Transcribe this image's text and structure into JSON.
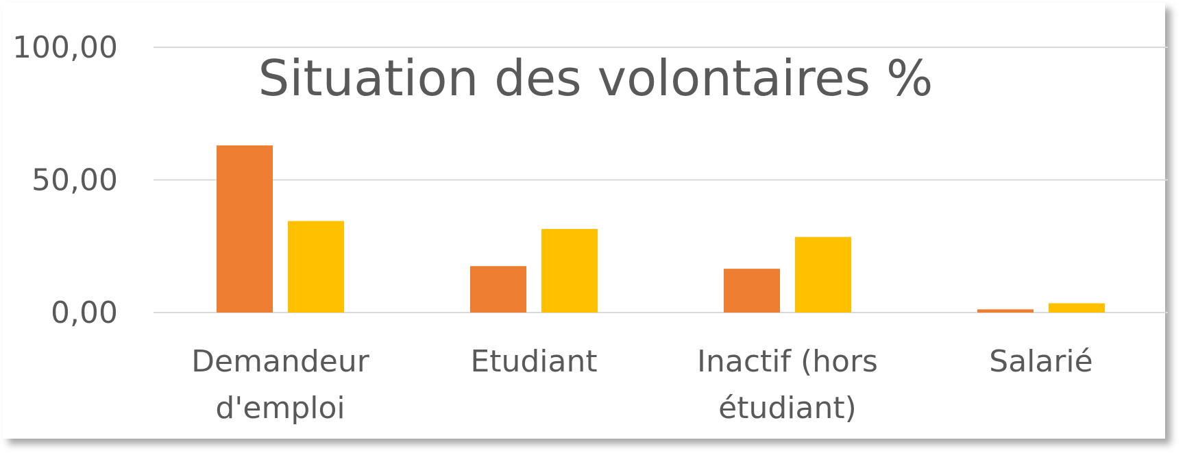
{
  "chart_data": {
    "type": "bar",
    "title": "Situation des volontaires %",
    "categories": [
      [
        "Demandeur",
        "d'emploi"
      ],
      [
        "Etudiant"
      ],
      [
        "Inactif (hors",
        "étudiant)"
      ],
      [
        "Salarié"
      ]
    ],
    "series": [
      {
        "values": [
          63.0,
          17.5,
          16.5,
          1.2
        ],
        "color": "#ED7D31"
      },
      {
        "values": [
          34.5,
          31.5,
          28.5,
          3.5
        ],
        "color": "#FFC000"
      }
    ],
    "ylim": [
      0,
      100
    ],
    "yticks": [
      "0,00",
      "50,00",
      "100,00"
    ],
    "ytick_values": [
      0,
      50,
      100
    ],
    "grid": true,
    "gridColor": "#D9D9D9"
  }
}
